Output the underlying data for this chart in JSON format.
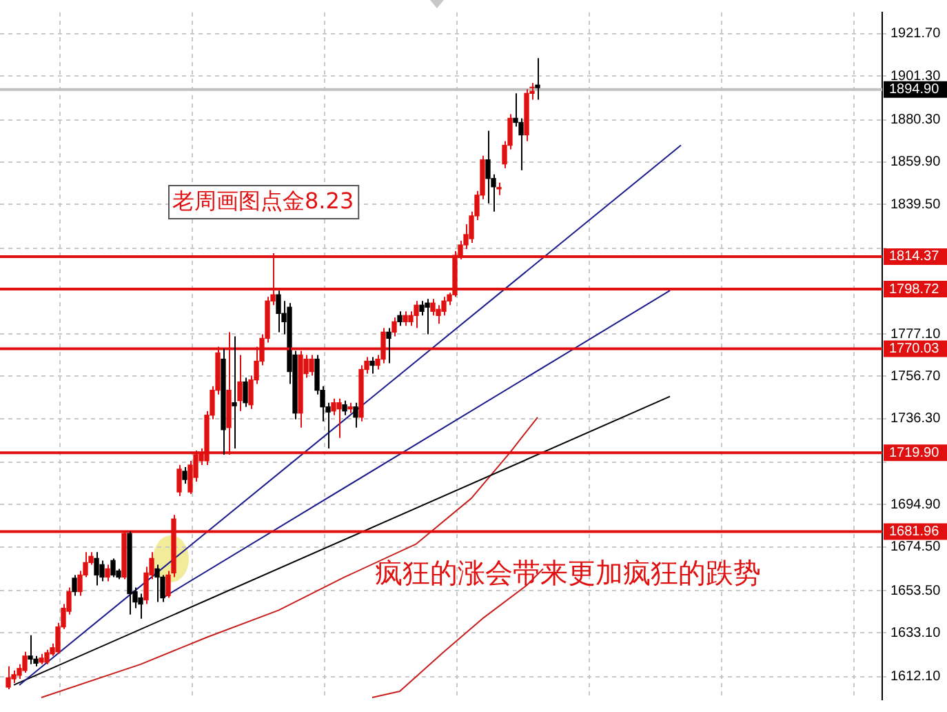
{
  "chart_data": {
    "type": "candlestick",
    "categories": [
      null,
      null,
      null,
      null,
      null,
      null,
      null,
      null,
      null,
      null,
      null,
      null,
      null,
      null,
      null,
      null,
      null,
      null,
      null,
      null,
      null,
      null,
      null,
      null,
      null,
      null,
      null,
      null,
      null,
      null,
      null,
      null,
      null,
      null,
      null,
      null,
      null,
      null,
      null,
      null,
      null,
      null,
      null,
      null,
      null,
      null,
      null,
      null,
      null,
      null,
      null,
      null,
      null,
      null,
      null,
      null,
      null,
      null,
      null,
      null,
      null,
      null,
      null,
      null,
      null,
      null,
      null,
      null,
      null,
      null,
      null,
      null,
      null,
      null,
      null,
      null,
      null,
      null,
      null,
      null,
      null,
      null,
      null,
      null,
      null,
      null,
      null,
      null,
      null,
      null,
      null,
      null,
      null,
      null,
      null,
      null,
      null,
      null,
      null,
      null,
      null,
      null,
      null,
      null,
      null,
      null,
      null,
      null,
      null,
      null,
      null,
      null,
      null,
      null,
      null,
      null,
      null,
      null,
      null,
      null,
      null,
      null,
      null,
      null,
      null,
      null,
      null,
      null,
      null,
      null,
      null,
      null,
      null,
      null,
      null,
      null,
      null,
      null,
      null,
      null,
      null,
      null,
      null,
      null,
      null,
      null,
      null,
      null,
      null,
      null,
      null,
      null,
      null,
      null,
      null,
      null,
      null,
      null,
      null,
      null
    ],
    "ohlc": [
      null,
      [
        1607,
        1617,
        1606,
        1611.5
      ],
      [
        1611,
        1615,
        1609,
        1613
      ],
      [
        1612.7,
        1618,
        1611,
        1616
      ],
      [
        1615,
        1624,
        1614,
        1622
      ],
      [
        1622,
        1632,
        1618,
        1620.5
      ],
      [
        1620.5,
        1622,
        1617,
        1618.5
      ],
      [
        1619,
        1623,
        1618,
        1621
      ],
      [
        1619,
        1625,
        1618,
        1623.6
      ],
      [
        1623,
        1628,
        1622,
        1626
      ],
      [
        1624,
        1638,
        1623,
        1636
      ],
      [
        1636,
        1647,
        1635,
        1645
      ],
      [
        1643.5,
        1655,
        1642,
        1653
      ],
      [
        1659.5,
        1661,
        1651,
        1653
      ],
      [
        1653,
        1663,
        1651,
        1661
      ],
      [
        1661,
        1672,
        1660,
        1667
      ],
      [
        1667,
        1672,
        1666,
        1670
      ],
      [
        1669,
        1672,
        1656,
        1661
      ],
      [
        1666,
        1668,
        1658,
        1660
      ],
      [
        1660,
        1666,
        1658,
        1664
      ],
      [
        1668,
        1669,
        1660,
        1661
      ],
      [
        1663,
        1664,
        1659,
        1660
      ],
      [
        1660,
        1682,
        1659,
        1681
      ],
      [
        1681,
        1682,
        1642,
        1652
      ],
      [
        1653,
        1655,
        1645,
        1648
      ],
      [
        1650,
        1652,
        1640,
        1647
      ],
      [
        1649,
        1665,
        1647,
        1662
      ],
      [
        1661,
        1672,
        1659,
        1669
      ],
      [
        1664,
        1666,
        1648,
        1660
      ],
      [
        1660,
        1661,
        1648,
        1650
      ],
      [
        1651,
        1663,
        1650,
        1661
      ],
      [
        1662,
        1690,
        1660,
        1688
      ],
      [
        1701,
        1714,
        1699,
        1712
      ],
      [
        1711,
        1713,
        1705,
        1707
      ],
      [
        1701,
        1716,
        1700,
        1714
      ],
      [
        1708,
        1721,
        1706,
        1719
      ],
      [
        1716,
        1722,
        1714,
        1719.6
      ],
      [
        1716,
        1740,
        1714,
        1738
      ],
      [
        1738,
        1752,
        1736,
        1750
      ],
      [
        1750,
        1771,
        1748,
        1768
      ],
      [
        1765,
        1770,
        1719,
        1731
      ],
      [
        1732,
        1778,
        1719,
        1750
      ],
      [
        1744,
        1776,
        1722,
        1742.5
      ],
      [
        1745,
        1767,
        1740,
        1754
      ],
      [
        1754,
        1756,
        1742,
        1744
      ],
      [
        1743,
        1757,
        1741,
        1755
      ],
      [
        1755,
        1771,
        1753,
        1764
      ],
      [
        1764,
        1777,
        1762,
        1775
      ],
      [
        1775,
        1795,
        1773,
        1793
      ],
      [
        1793,
        1816,
        1791,
        1796
      ],
      [
        1796,
        1798,
        1778,
        1787
      ],
      [
        1787,
        1793,
        1777,
        1783
      ],
      [
        1790,
        1792,
        1753,
        1759
      ],
      [
        1767,
        1769,
        1736,
        1739
      ],
      [
        1739,
        1769,
        1732,
        1767
      ],
      [
        1758,
        1767,
        1756,
        1765
      ],
      [
        1759,
        1767,
        1757,
        1765
      ],
      [
        1765,
        1767,
        1748,
        1750
      ],
      [
        1750,
        1752,
        1735,
        1742
      ],
      [
        1742,
        1744,
        1722,
        1739.5
      ],
      [
        1740,
        1746,
        1738,
        1744
      ],
      [
        1741,
        1746,
        1727,
        1744
      ],
      [
        1743,
        1745,
        1738,
        1740
      ],
      [
        1741,
        1744,
        1739,
        1742
      ],
      [
        1742,
        1744,
        1732,
        1737
      ],
      [
        1737,
        1762,
        1735,
        1760
      ],
      [
        1760,
        1766,
        1758,
        1764
      ],
      [
        1764,
        1766,
        1758,
        1762
      ],
      [
        1762,
        1767,
        1760,
        1765
      ],
      [
        1765,
        1780,
        1763,
        1778
      ],
      [
        1778,
        1780,
        1763,
        1775
      ],
      [
        1778,
        1785,
        1776,
        1783
      ],
      [
        1786,
        1788,
        1781,
        1783
      ],
      [
        1783,
        1788,
        1781,
        1786
      ],
      [
        1783,
        1788,
        1781,
        1786
      ],
      [
        1786,
        1793,
        1780,
        1791
      ],
      [
        1791,
        1793,
        1786,
        1788
      ],
      [
        1792,
        1794,
        1777,
        1790
      ],
      [
        1788,
        1794,
        1786,
        1792
      ],
      [
        1786,
        1791,
        1782,
        1789
      ],
      [
        1788,
        1795,
        1786,
        1793
      ],
      [
        1793,
        1797,
        1791,
        1796
      ],
      [
        1796,
        1817,
        1795,
        1815
      ],
      [
        1815,
        1822,
        1813,
        1820
      ],
      [
        1820,
        1830,
        1818,
        1825
      ],
      [
        1823,
        1836,
        1821,
        1834
      ],
      [
        1834,
        1846,
        1832,
        1844
      ],
      [
        1844,
        1863,
        1842,
        1861
      ],
      [
        1861,
        1875,
        1840,
        1852
      ],
      [
        1852,
        1854,
        1836,
        1848
      ],
      [
        1847,
        1850,
        1844,
        1847.5
      ],
      [
        1859,
        1870,
        1857,
        1868
      ],
      [
        1868,
        1883,
        1866,
        1881
      ],
      [
        1881,
        1893,
        1877,
        1879
      ],
      [
        1879,
        1881,
        1856,
        1873
      ],
      [
        1873,
        1895,
        1870,
        1893
      ],
      [
        1893,
        1898,
        1890,
        1896
      ],
      [
        1897,
        1910,
        1890,
        1894.9
      ],
      null,
      null,
      null,
      null,
      null,
      null,
      null,
      null,
      null,
      null,
      null,
      null,
      null,
      null,
      null,
      null,
      null,
      null,
      null,
      null,
      null,
      null,
      null,
      null,
      null,
      null,
      null,
      null,
      null,
      null,
      null,
      null,
      null,
      null,
      null,
      null,
      null,
      null,
      null,
      null,
      null,
      null,
      null,
      null,
      null,
      null,
      null,
      null,
      null,
      null,
      null,
      null,
      null,
      null,
      null,
      null,
      null,
      null,
      null,
      null,
      null,
      null
    ],
    "colors": [
      null,
      "#e01010",
      "#e01010",
      "#e01010",
      "#e01010",
      "#000000",
      "#000000",
      "#e01010",
      "#e01010",
      "#e01010",
      "#e01010",
      "#e01010",
      "#e01010",
      "#000000",
      "#e01010",
      "#e01010",
      "#e01010",
      "#000000",
      "#000000",
      "#e01010",
      "#000000",
      "#000000",
      "#e01010",
      "#000000",
      "#000000",
      "#000000",
      "#e01010",
      "#e01010",
      "#000000",
      "#000000",
      "#e01010",
      "#e01010",
      "#e01010",
      "#000000",
      "#e01010",
      "#e01010",
      "#e01010",
      "#e01010",
      "#e01010",
      "#e01010",
      "#000000",
      "#e01010",
      "#000000",
      "#e01010",
      "#000000",
      "#e01010",
      "#e01010",
      "#e01010",
      "#e01010",
      "#e01010",
      "#000000",
      "#000000",
      "#000000",
      "#000000",
      "#e01010",
      "#e01010",
      "#e01010",
      "#000000",
      "#000000",
      "#000000",
      "#e01010",
      "#e01010",
      "#000000",
      "#e01010",
      "#000000",
      "#e01010",
      "#e01010",
      "#000000",
      "#e01010",
      "#e01010",
      "#000000",
      "#e01010",
      "#000000",
      "#e01010",
      "#e01010",
      "#e01010",
      "#000000",
      "#000000",
      "#e01010",
      "#e01010",
      "#e01010",
      "#e01010",
      "#e01010",
      "#e01010",
      "#e01010",
      "#e01010",
      "#e01010",
      "#e01010",
      "#000000",
      "#000000",
      "#e01010",
      "#e01010",
      "#e01010",
      "#000000",
      "#000000",
      "#e01010",
      "#e01010",
      "#000000",
      null,
      null,
      null,
      null,
      null,
      null,
      null,
      null,
      null,
      null,
      null,
      null,
      null,
      null,
      null,
      null,
      null,
      null,
      null,
      null,
      null,
      null,
      null,
      null,
      null,
      null,
      null,
      null,
      null,
      null,
      null,
      null,
      null,
      null,
      null,
      null,
      null,
      null,
      null,
      null,
      null,
      null,
      null,
      null,
      null,
      null,
      null,
      null,
      null,
      null,
      null,
      null,
      null,
      null,
      null,
      null,
      null,
      null,
      null,
      null,
      null,
      null
    ],
    "series": [
      {
        "type": "line",
        "color": "#1a1a8c",
        "values": [
          null,
          null,
          null,
          1608,
          null,
          null,
          null,
          null,
          null,
          null,
          null,
          null,
          null,
          null,
          null,
          null,
          null,
          null,
          null,
          null,
          null,
          null,
          null,
          null,
          null,
          null,
          null,
          null,
          null,
          null,
          null,
          null,
          null,
          null,
          null,
          null,
          null,
          null,
          null,
          null,
          null,
          null,
          null,
          null,
          null,
          null,
          null,
          null,
          null,
          null,
          null,
          null,
          null,
          null,
          null,
          null,
          null,
          null,
          null,
          null,
          null,
          null,
          null,
          null,
          null,
          null,
          null,
          null,
          null,
          null,
          null,
          null,
          null,
          null,
          null,
          null,
          null,
          null,
          null,
          null,
          null,
          null,
          null,
          null,
          null,
          null,
          null,
          null,
          null,
          null,
          null,
          null,
          null,
          null,
          null,
          null,
          null,
          null,
          null,
          null,
          null,
          null,
          null,
          null,
          null,
          null,
          null,
          null,
          null,
          null,
          null,
          null,
          null,
          null,
          null,
          null,
          null,
          null,
          null,
          null,
          null,
          null,
          null,
          1868,
          null,
          null,
          null,
          null,
          null,
          null,
          null,
          null,
          null,
          null,
          null,
          null,
          null,
          null,
          null,
          null,
          null,
          null,
          null,
          null,
          null,
          null,
          null,
          null,
          null,
          null,
          null,
          null,
          null,
          null,
          null,
          null,
          null,
          null,
          null,
          null
        ]
      },
      {
        "type": "line",
        "color": "#1a1a8c",
        "values": [
          null,
          null,
          null,
          null,
          null,
          null,
          null,
          null,
          null,
          null,
          null,
          null,
          null,
          null,
          null,
          null,
          null,
          null,
          null,
          null,
          null,
          null,
          null,
          null,
          null,
          null,
          null,
          null,
          null,
          1650,
          null,
          null,
          null,
          null,
          null,
          null,
          null,
          null,
          null,
          null,
          null,
          null,
          null,
          null,
          null,
          null,
          null,
          null,
          null,
          null,
          null,
          null,
          null,
          null,
          null,
          null,
          null,
          null,
          null,
          null,
          null,
          null,
          null,
          null,
          null,
          null,
          null,
          null,
          null,
          null,
          null,
          null,
          null,
          null,
          null,
          null,
          null,
          null,
          null,
          null,
          null,
          null,
          null,
          null,
          null,
          null,
          null,
          null,
          null,
          null,
          null,
          null,
          null,
          null,
          null,
          null,
          null,
          null,
          null,
          null,
          null,
          null,
          null,
          null,
          null,
          null,
          null,
          null,
          null,
          null,
          null,
          null,
          null,
          null,
          null,
          null,
          null,
          null,
          null,
          null,
          null,
          1798,
          null,
          null,
          null,
          null,
          null,
          null,
          null,
          null,
          null,
          null,
          null,
          null,
          null,
          null,
          null,
          null,
          null,
          null,
          null,
          null,
          null,
          null,
          null,
          null,
          null,
          null,
          null,
          null,
          null,
          null,
          null,
          null,
          null,
          null,
          null,
          null,
          null,
          null
        ]
      },
      {
        "type": "line",
        "color": "#000000",
        "values": [
          null,
          null,
          1608,
          null,
          null,
          null,
          null,
          null,
          null,
          null,
          null,
          null,
          null,
          null,
          null,
          null,
          null,
          null,
          null,
          null,
          null,
          null,
          null,
          null,
          null,
          null,
          null,
          null,
          null,
          null,
          null,
          null,
          null,
          null,
          null,
          null,
          null,
          null,
          null,
          null,
          null,
          null,
          null,
          null,
          null,
          null,
          null,
          null,
          null,
          null,
          null,
          null,
          null,
          null,
          null,
          null,
          null,
          null,
          null,
          null,
          null,
          null,
          null,
          null,
          null,
          null,
          null,
          null,
          null,
          null,
          null,
          null,
          null,
          null,
          null,
          null,
          null,
          null,
          null,
          null,
          null,
          null,
          null,
          null,
          null,
          null,
          null,
          null,
          null,
          null,
          null,
          null,
          null,
          null,
          null,
          null,
          null,
          null,
          null,
          null,
          null,
          null,
          null,
          null,
          null,
          null,
          null,
          null,
          null,
          null,
          null,
          null,
          null,
          null,
          null,
          null,
          null,
          null,
          null,
          null,
          null,
          1747,
          null,
          null,
          null,
          null,
          null,
          null,
          null,
          null,
          null,
          null,
          null,
          null,
          null,
          null,
          null,
          null,
          null,
          null,
          null,
          null,
          null,
          null,
          null,
          null,
          null,
          null,
          null,
          null,
          null,
          null,
          null,
          null,
          null,
          null,
          null,
          null,
          null,
          null
        ]
      },
      {
        "type": "line",
        "color": "#c81e1e",
        "values": [
          null,
          null,
          null,
          null,
          null,
          null,
          null,
          1602,
          null,
          null,
          null,
          null,
          null,
          null,
          null,
          null,
          null,
          null,
          null,
          null,
          null,
          null,
          null,
          null,
          null,
          1618,
          null,
          null,
          null,
          null,
          null,
          null,
          null,
          null,
          null,
          null,
          null,
          1631,
          null,
          null,
          null,
          null,
          null,
          null,
          null,
          null,
          null,
          null,
          null,
          null,
          1644,
          null,
          null,
          null,
          null,
          null,
          null,
          null,
          null,
          null,
          null,
          null,
          1660,
          null,
          null,
          null,
          null,
          null,
          null,
          null,
          null,
          null,
          null,
          null,
          null,
          1676,
          null,
          null,
          null,
          null,
          null,
          null,
          null,
          null,
          null,
          1698,
          null,
          null,
          null,
          null,
          null,
          null,
          1720,
          null,
          null,
          null,
          null,
          1737,
          null,
          null,
          null,
          null,
          null,
          null,
          null,
          null,
          null,
          null,
          null,
          null,
          null,
          null,
          null,
          null,
          null,
          null,
          null,
          null,
          null,
          null,
          null,
          null,
          null,
          null,
          null,
          null,
          null,
          null,
          null,
          null,
          null,
          null,
          null,
          null,
          null,
          null,
          null,
          null,
          null,
          null,
          null,
          null,
          null,
          null,
          null,
          null,
          null,
          null,
          null,
          null,
          null,
          null,
          null,
          null,
          null,
          null,
          null,
          null,
          null,
          null
        ]
      },
      {
        "type": "line",
        "color": "#c81e1e",
        "values": [
          null,
          null,
          null,
          null,
          null,
          null,
          null,
          null,
          null,
          null,
          null,
          null,
          null,
          null,
          null,
          null,
          null,
          null,
          null,
          null,
          null,
          null,
          null,
          null,
          null,
          null,
          null,
          null,
          null,
          null,
          null,
          null,
          null,
          null,
          null,
          null,
          null,
          null,
          null,
          null,
          null,
          null,
          null,
          null,
          null,
          null,
          null,
          null,
          null,
          null,
          null,
          null,
          null,
          null,
          null,
          null,
          null,
          null,
          null,
          null,
          null,
          null,
          null,
          null,
          null,
          null,
          null,
          1602,
          null,
          null,
          null,
          null,
          1605,
          null,
          null,
          null,
          null,
          null,
          null,
          null,
          1624,
          null,
          null,
          null,
          null,
          null,
          null,
          1640,
          null,
          null,
          null,
          null,
          null,
          null,
          null,
          1656,
          null,
          null,
          1664,
          null,
          null,
          null,
          null,
          null,
          null,
          null,
          null,
          null,
          null,
          null,
          null,
          null,
          null,
          null,
          null,
          null,
          null,
          null,
          null,
          null,
          null,
          null,
          null,
          null,
          null,
          null,
          null,
          null,
          null,
          null,
          null,
          null,
          null,
          null,
          null,
          null,
          null,
          null,
          null,
          null,
          null,
          null,
          null,
          null,
          null,
          null,
          null,
          null,
          null,
          null,
          null,
          null,
          null,
          null,
          null,
          null,
          null,
          null,
          null,
          null
        ]
      }
    ],
    "ylim": [
      1601,
      1932
    ],
    "yticks": [
      {
        "value": 1612.1,
        "label": "1612.10"
      },
      {
        "value": 1633.1,
        "label": "1633.10"
      },
      {
        "value": 1653.5,
        "label": "1653.50"
      },
      {
        "value": 1674.5,
        "label": "1674.50"
      },
      {
        "value": 1694.9,
        "label": "1694.90"
      },
      {
        "value": 1715.3,
        "label": null
      },
      {
        "value": 1736.3,
        "label": "1736.30"
      },
      {
        "value": 1756.7,
        "label": "1756.70"
      },
      {
        "value": 1777.1,
        "label": "1777.10"
      },
      {
        "value": 1818.5,
        "label": null
      },
      {
        "value": 1839.5,
        "label": "1839.50"
      },
      {
        "value": 1859.9,
        "label": "1859.90"
      },
      {
        "value": 1880.3,
        "label": "1880.30"
      },
      {
        "value": 1901.3,
        "label": "1901.30"
      },
      {
        "value": 1921.7,
        "label": "1921.70"
      }
    ],
    "ref_lines": [
      {
        "axis": "y",
        "value": 1894.9,
        "label": "1894.90",
        "color": "#c0c0c0"
      },
      {
        "axis": "y",
        "value": 1814.37,
        "label": "1814.37",
        "color": "#e01010"
      },
      {
        "axis": "y",
        "value": 1798.72,
        "label": "1798.72",
        "color": "#e01010"
      },
      {
        "axis": "y",
        "value": 1770.03,
        "label": "1770.03",
        "color": "#e01010"
      },
      {
        "axis": "y",
        "value": 1719.9,
        "label": "1719.90",
        "color": "#e01010"
      },
      {
        "axis": "y",
        "value": 1681.96,
        "label": "1681.96",
        "color": "#e01010"
      }
    ],
    "annotations": [
      "老周画图点金8.23",
      "疯狂的涨会带来更加疯狂的跌势"
    ],
    "grid": true,
    "tick_labels": "y"
  }
}
